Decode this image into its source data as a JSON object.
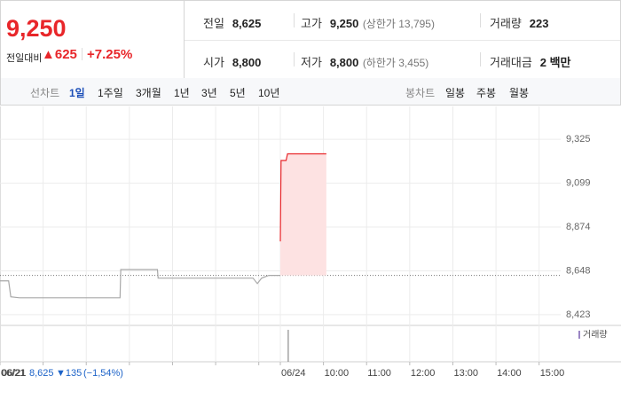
{
  "quote": {
    "price": "9,250",
    "change_label": "전일대비",
    "change": "▲625",
    "change_pct": "+7.25%"
  },
  "stats": [
    {
      "label": "전일",
      "value": "8,625"
    },
    {
      "label": "고가",
      "value": "9,250",
      "note": "(상한가 13,795)"
    },
    {
      "label": "거래량",
      "value": "223"
    },
    {
      "label": "시가",
      "value": "8,800"
    },
    {
      "label": "저가",
      "value": "8,800",
      "note": "(하한가 3,455)"
    },
    {
      "label": "거래대금",
      "value": "2 백만"
    }
  ],
  "tabs": {
    "line_label": "선차트",
    "line_periods": [
      "1일",
      "1주일",
      "3개월",
      "1년",
      "3년",
      "5년",
      "10년"
    ],
    "candle_label": "봉차트",
    "candle_periods": [
      "일봉",
      "주봉",
      "월봉"
    ]
  },
  "chart_data": {
    "type": "line",
    "xlim": [
      -390,
      390
    ],
    "xticks": [
      {
        "value": -390,
        "label": "06/21"
      },
      {
        "value": -330,
        "label": null
      },
      {
        "value": -270,
        "label": null
      },
      {
        "value": -210,
        "label": null
      },
      {
        "value": -150,
        "label": null
      },
      {
        "value": -90,
        "label": null
      },
      {
        "value": -30,
        "label": null
      },
      {
        "value": 0,
        "label": "06/24"
      },
      {
        "value": 60,
        "label": "10:00"
      },
      {
        "value": 120,
        "label": "11:00"
      },
      {
        "value": 180,
        "label": "12:00"
      },
      {
        "value": 240,
        "label": "13:00"
      },
      {
        "value": 300,
        "label": "14:00"
      },
      {
        "value": 360,
        "label": "15:00"
      }
    ],
    "ylim": [
      8377,
      9494
    ],
    "yticks": [
      {
        "value": 9325,
        "label": "9,325"
      },
      {
        "value": 9099,
        "label": "9,099"
      },
      {
        "value": 8874,
        "label": "8,874"
      },
      {
        "value": 8648,
        "label": "8,648"
      },
      {
        "value": 8423,
        "label": "8,423"
      }
    ],
    "baseline": 8625,
    "series": [
      {
        "color": "#a8a8a8",
        "x": [
          -390,
          -378,
          -375,
          -363,
          -223,
          -222,
          -171,
          -170,
          -38,
          -32,
          -26,
          -16,
          0
        ],
        "values": [
          8597,
          8597,
          8515,
          8510,
          8510,
          8655,
          8655,
          8611,
          8611,
          8583,
          8611,
          8625,
          8625
        ]
      },
      {
        "color": "#e8262a",
        "fill": "#fde2e2",
        "x": [
          0,
          1,
          8,
          10,
          64
        ],
        "values": [
          8800,
          9216,
          9216,
          9250,
          9250
        ]
      }
    ],
    "volume": {
      "label": "거래량",
      "color": "#9b86c4",
      "x": [
        11
      ],
      "values": [
        223
      ],
      "ylim": [
        0,
        235
      ]
    }
  },
  "footer": {
    "date": "06/21",
    "price": "8,625",
    "change": "▼135",
    "change_pct": "(−1,54%)"
  }
}
